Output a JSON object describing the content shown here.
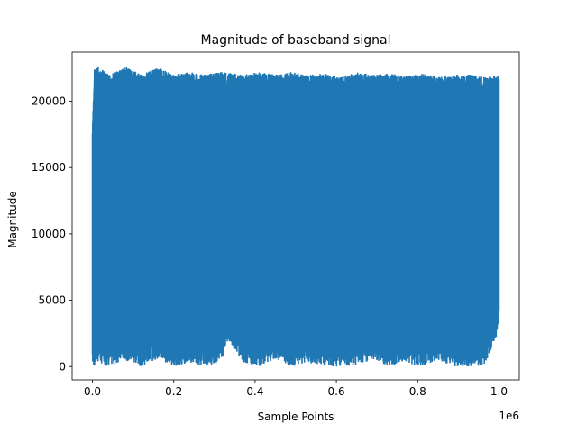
{
  "chart_data": {
    "type": "line",
    "title": "Magnitude of baseband signal",
    "xlabel": "Sample Points",
    "ylabel": "Magnitude",
    "x_offset_label": "1e6",
    "xlim": [
      -50000,
      1050000
    ],
    "ylim": [
      -1000,
      23700
    ],
    "x_ticks": [
      0,
      200000,
      400000,
      600000,
      800000,
      1000000
    ],
    "x_tick_labels": [
      "0.0",
      "0.2",
      "0.4",
      "0.6",
      "0.8",
      "1.0"
    ],
    "y_ticks": [
      0,
      5000,
      10000,
      15000,
      20000
    ],
    "y_tick_labels": [
      "0",
      "5000",
      "10000",
      "15000",
      "20000"
    ],
    "grid": false,
    "legend": "none",
    "series": [
      {
        "color": "#1f77b4",
        "envelope": {
          "x": [
            0,
            5000,
            15000,
            40000,
            80000,
            120000,
            160000,
            200000,
            240000,
            280000,
            320000,
            335000,
            370000,
            410000,
            450000,
            490000,
            530000,
            570000,
            610000,
            650000,
            690000,
            730000,
            770000,
            810000,
            850000,
            890000,
            930000,
            965000,
            1000000
          ],
          "upper": [
            18000,
            22500,
            22600,
            22000,
            22600,
            22000,
            22600,
            22000,
            22200,
            22000,
            22300,
            22200,
            22000,
            22200,
            22000,
            22200,
            22000,
            22100,
            21800,
            22200,
            22000,
            22100,
            21900,
            22100,
            21900,
            22000,
            22000,
            21800,
            22000
          ],
          "lower": [
            0,
            0,
            300,
            0,
            500,
            0,
            600,
            0,
            300,
            0,
            500,
            2000,
            300,
            0,
            600,
            0,
            300,
            0,
            0,
            0,
            500,
            0,
            300,
            0,
            500,
            0,
            0,
            0,
            2800
          ]
        },
        "gaps_x": [
          18000,
          330000,
          645000,
          960000
        ]
      }
    ]
  }
}
